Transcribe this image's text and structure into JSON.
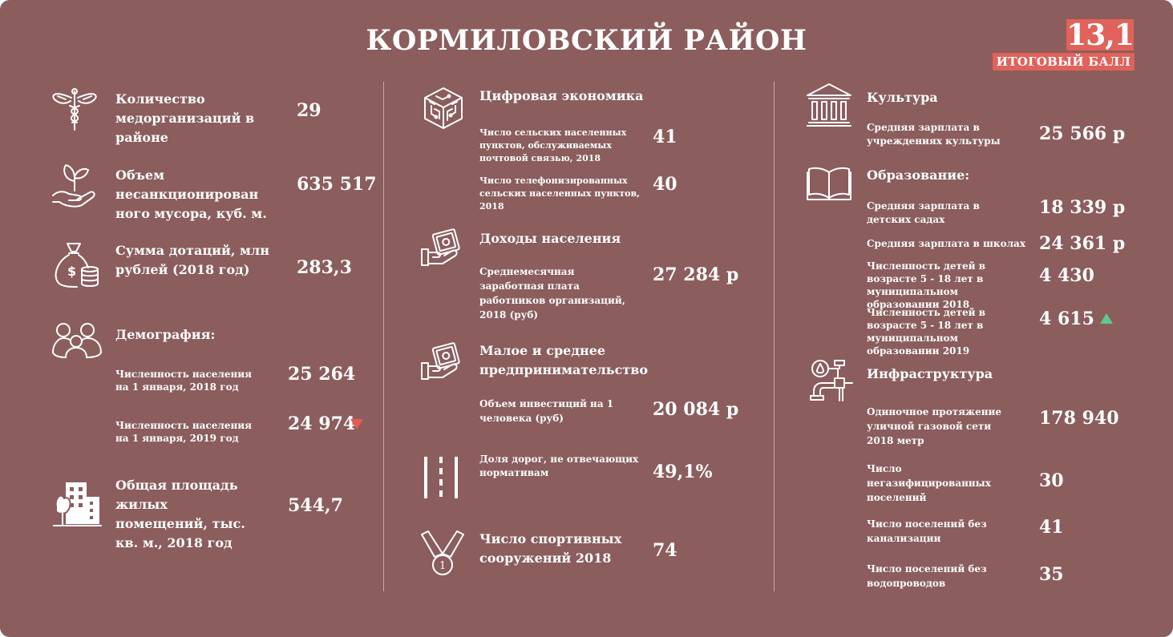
{
  "header": {
    "title": "КОРМИЛОВСКИЙ РАЙОН",
    "score": "13,1",
    "score_label": "ИТОГОВЫЙ БАЛЛ"
  },
  "col1": {
    "med": {
      "label": "Количество медорганизаций в районе",
      "value": "29",
      "icon": "medicine-caduceus-icon"
    },
    "garbage": {
      "label": "Объем несанкционирован ного мусора, куб. м.",
      "value": "635 517",
      "icon": "hand-sprout-icon"
    },
    "subsidies": {
      "label": "Сумма дотаций, млн рублей (2018 год)",
      "value": "283,3",
      "icon": "money-bag-icon"
    },
    "demography": {
      "title": "Демография:",
      "icon": "people-group-icon",
      "pop2018": {
        "label": "Численность населения на 1 января, 2018 год",
        "value": "25 264"
      },
      "pop2019": {
        "label": "Численность населения на 1 января, 2019 год",
        "value": "24 974",
        "trend": "down",
        "trend_color": "#e35b52"
      }
    },
    "housing": {
      "label": "Общая площадь жилых помещений, тыс. кв. м., 2018 год",
      "value": "544,7",
      "icon": "buildings-tree-icon"
    }
  },
  "col2": {
    "digital": {
      "title": "Цифровая экономика",
      "icon": "digital-cube-icon",
      "postal": {
        "label": "Число сельских населенных пунктов, обслуживаемых почтовой связью, 2018",
        "value": "41"
      },
      "phone": {
        "label": "Число телефонизированных сельских населенных пунктов, 2018",
        "value": "40"
      }
    },
    "income": {
      "title": "Доходы населения",
      "icon": "hand-money-icon",
      "salary": {
        "label": "Среднемесячная заработная плата работников организаций, 2018 (руб)",
        "value": "27 284 р"
      }
    },
    "sme": {
      "title": "Малое и среднее предпринимательство",
      "icon": "hand-money-icon",
      "investment": {
        "label": "Объем инвестиций на 1 человека (руб)",
        "value": "20 084 р"
      }
    },
    "roads": {
      "label": "Доля дорог, не отвечающих нормативам",
      "value": "49,1%",
      "icon": "road-icon"
    },
    "sports": {
      "label": "Число спортивных сооружений 2018",
      "value": "74",
      "icon": "medal-icon",
      "medal_number": "1"
    }
  },
  "col3": {
    "culture": {
      "title": "Культура",
      "icon": "museum-columns-icon",
      "salary": {
        "label": "Средняя зарплата в учреждениях культуры",
        "value": "25 566 р"
      }
    },
    "education": {
      "title": "Образование:",
      "icon": "open-book-icon",
      "kindergarten": {
        "label": "Средняя зарплата в детских садах",
        "value": "18 339 р"
      },
      "schools": {
        "label": "Средняя зарплата в школах",
        "value": "24 361 р"
      },
      "kids2018": {
        "label": "Численность детей в возрасте 5 - 18 лет в муниципальном образовании 2018",
        "value": "4 430"
      },
      "kids2019": {
        "label": "Численность детей в возрасте 5 - 18 лет в муниципальном образовании 2019",
        "value": "4 615",
        "trend": "up",
        "trend_color": "#5fc98c"
      }
    },
    "infra": {
      "title": "Инфраструктура",
      "icon": "pipes-faucet-icon",
      "gas": {
        "label": "Одиночное протяжение уличной газовой сети 2018 метр",
        "value": "178 940"
      },
      "nogas": {
        "label": "Число негазифицированных поселений",
        "value": "30"
      },
      "nosewer": {
        "label": "Число поселений без канализации",
        "value": "41"
      },
      "nowater": {
        "label": "Число поселений без водопроводов",
        "value": "35"
      }
    }
  },
  "colors": {
    "background": "#8b5d5d",
    "accent": "#e0625a",
    "text": "#ffffff"
  }
}
